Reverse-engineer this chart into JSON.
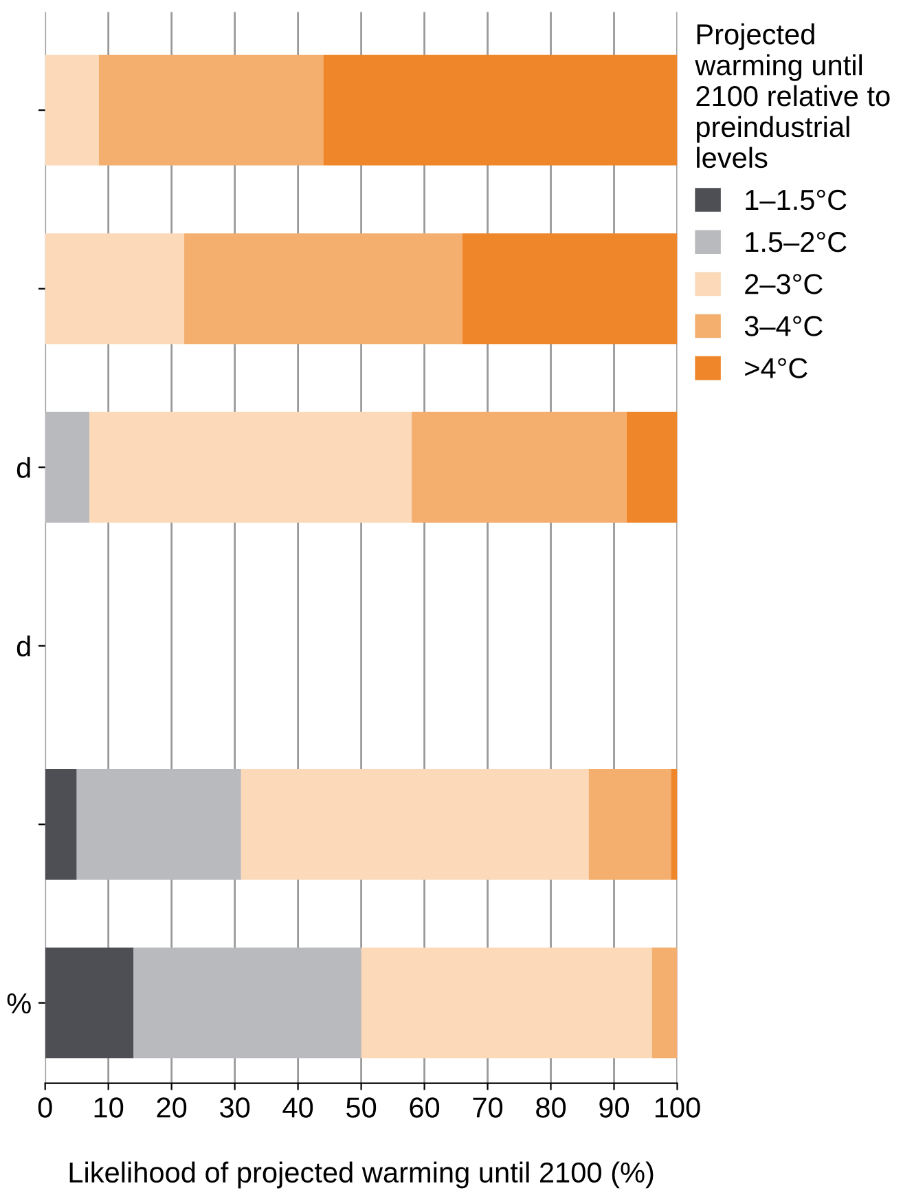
{
  "chart_data": {
    "type": "bar",
    "orientation": "horizontal",
    "stacked": true,
    "categories": [
      null,
      null,
      "d",
      "d",
      null,
      "%"
    ],
    "xlabel": "Likelihood of projected warming until 2100 (%)",
    "legend_title": "Projected\nwarming until\n2100 relative to\npreindustrial\nlevels",
    "series": [
      {
        "name": "1–1.5°C",
        "color": "#4d4f54",
        "values": [
          0,
          0,
          0,
          null,
          5,
          14
        ]
      },
      {
        "name": "1.5–2°C",
        "color": "#b9babd",
        "values": [
          0,
          0,
          7,
          null,
          26,
          36
        ]
      },
      {
        "name": "2–3°C",
        "color": "#fcd9b8",
        "values": [
          8.5,
          22,
          51,
          null,
          55,
          46
        ]
      },
      {
        "name": "3–4°C",
        "color": "#f4ae6e",
        "values": [
          35.5,
          44,
          34,
          null,
          13,
          4
        ]
      },
      {
        "name": ">4°C",
        "color": "#f0862a",
        "values": [
          56,
          34,
          8,
          null,
          1,
          0
        ]
      }
    ],
    "xlim": [
      0,
      100
    ],
    "xticks": [
      0,
      10,
      20,
      30,
      40,
      50,
      60,
      70,
      80,
      90,
      100
    ],
    "grid": "x",
    "legend": "top right"
  }
}
